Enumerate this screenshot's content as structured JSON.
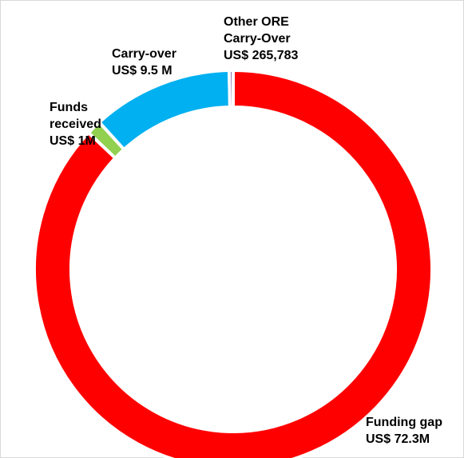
{
  "chart_data": {
    "type": "donut",
    "title": "",
    "legend": "none",
    "slices": [
      {
        "name": "Funding gap",
        "value": 72.3,
        "label_lines": [
          "Funding gap",
          "US$ 72.3M"
        ],
        "color": "#ff0000"
      },
      {
        "name": "Funds received",
        "value": 1.0,
        "label_lines": [
          "Funds",
          "received",
          "US$ 1M"
        ],
        "color": "#92d050"
      },
      {
        "name": "Carry-over",
        "value": 9.5,
        "label_lines": [
          "Carry-over",
          "US$ 9.5 M"
        ],
        "color": "#00b0f0"
      },
      {
        "name": "Other ORE Carry-Over",
        "value": 0.265783,
        "label_lines": [
          "Other ORE",
          "Carry-Over",
          "US$ 265,783"
        ],
        "color": "#8064a2"
      }
    ],
    "unit": "US$ M"
  }
}
